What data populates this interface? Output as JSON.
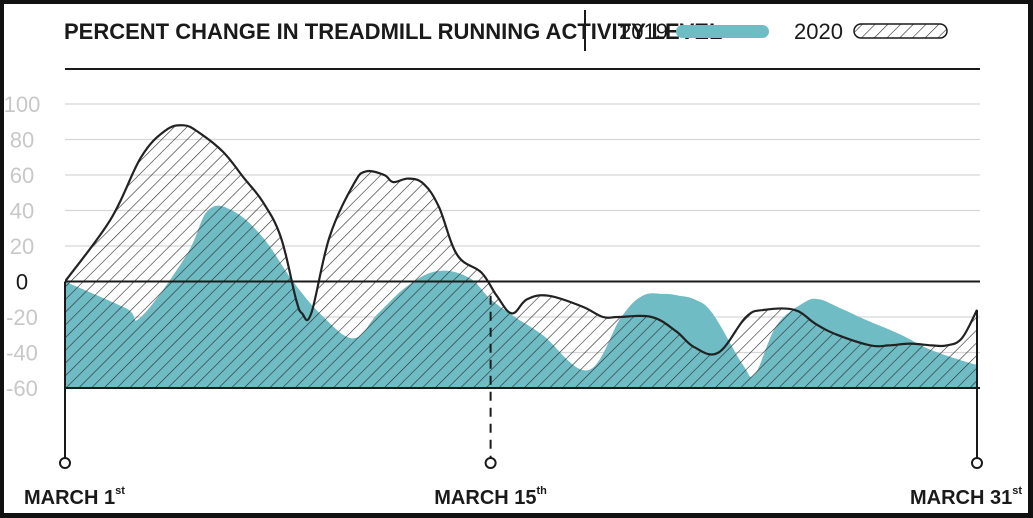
{
  "chart_data": {
    "type": "area",
    "title": "PERCENT CHANGE IN TREADMILL RUNNING ACTIVITY LEVEL",
    "xlabel": "",
    "ylabel": "",
    "ylim": [
      -60,
      100
    ],
    "yticks": [
      "100",
      "80",
      "60",
      "40",
      "20",
      "0",
      "-20",
      "-40",
      "-60"
    ],
    "ytick_values": [
      100,
      80,
      60,
      40,
      20,
      0,
      -20,
      -40,
      -60
    ],
    "x_range": [
      1,
      31
    ],
    "x_ticks": [
      {
        "main": "MARCH 1",
        "sup": "st",
        "day": 1
      },
      {
        "main": "MARCH 15",
        "sup": "th",
        "day": 15
      },
      {
        "main": "MARCH 31",
        "sup": "st",
        "day": 31
      }
    ],
    "legend_placement": "top-right",
    "grid": true,
    "series": [
      {
        "name": "2019",
        "color": "#6fbcc5",
        "style": "solid",
        "x": [
          1,
          3,
          3.5,
          5,
          5.7,
          6.5,
          7.5,
          8.5,
          9.5,
          10.5,
          11.3,
          12.3,
          13.3,
          14.3,
          15,
          15.8,
          16.7,
          18.2,
          19.3,
          20,
          20.7,
          21.2,
          21.7,
          22.3,
          23.3,
          23.7,
          24.4,
          25.3,
          25.8,
          26.5,
          27.4,
          28.5,
          29.4,
          30.4,
          31
        ],
        "y": [
          0,
          -15,
          -20,
          15,
          40,
          40,
          25,
          0,
          -20,
          -32,
          -18,
          -2,
          6,
          2,
          -10,
          -20,
          -30,
          -50,
          -20,
          -8,
          -7,
          -8,
          -10,
          -18,
          -47,
          -52,
          -25,
          -12,
          -10,
          -15,
          -22,
          -30,
          -38,
          -44,
          -47
        ]
      },
      {
        "name": "2020",
        "color": "#222222",
        "style": "hatched",
        "x": [
          1,
          2.5,
          3.5,
          4.3,
          4.9,
          5.4,
          6.2,
          6.9,
          7.5,
          8.1,
          8.6,
          8.8,
          9.1,
          9.7,
          10.5,
          10.9,
          11.5,
          11.8,
          12.3,
          12.8,
          13.3,
          13.9,
          14.7,
          15.2,
          15.7,
          16.2,
          16.9,
          18,
          18.7,
          19.2,
          20.3,
          21.1,
          21.7,
          22.5,
          23.4,
          24,
          25,
          25.7,
          26.4,
          27.5,
          28.1,
          28.8,
          29.5,
          30,
          30.5,
          31
        ],
        "y": [
          0,
          35,
          70,
          85,
          88,
          84,
          73,
          58,
          45,
          25,
          -10,
          -18,
          -18,
          25,
          55,
          62,
          60,
          56,
          58,
          55,
          42,
          15,
          5,
          -8,
          -18,
          -10,
          -8,
          -14,
          -20,
          -20,
          -20,
          -28,
          -37,
          -40,
          -20,
          -16,
          -16,
          -24,
          -30,
          -36,
          -36,
          -35,
          -36,
          -36,
          -32,
          -16
        ]
      }
    ]
  }
}
